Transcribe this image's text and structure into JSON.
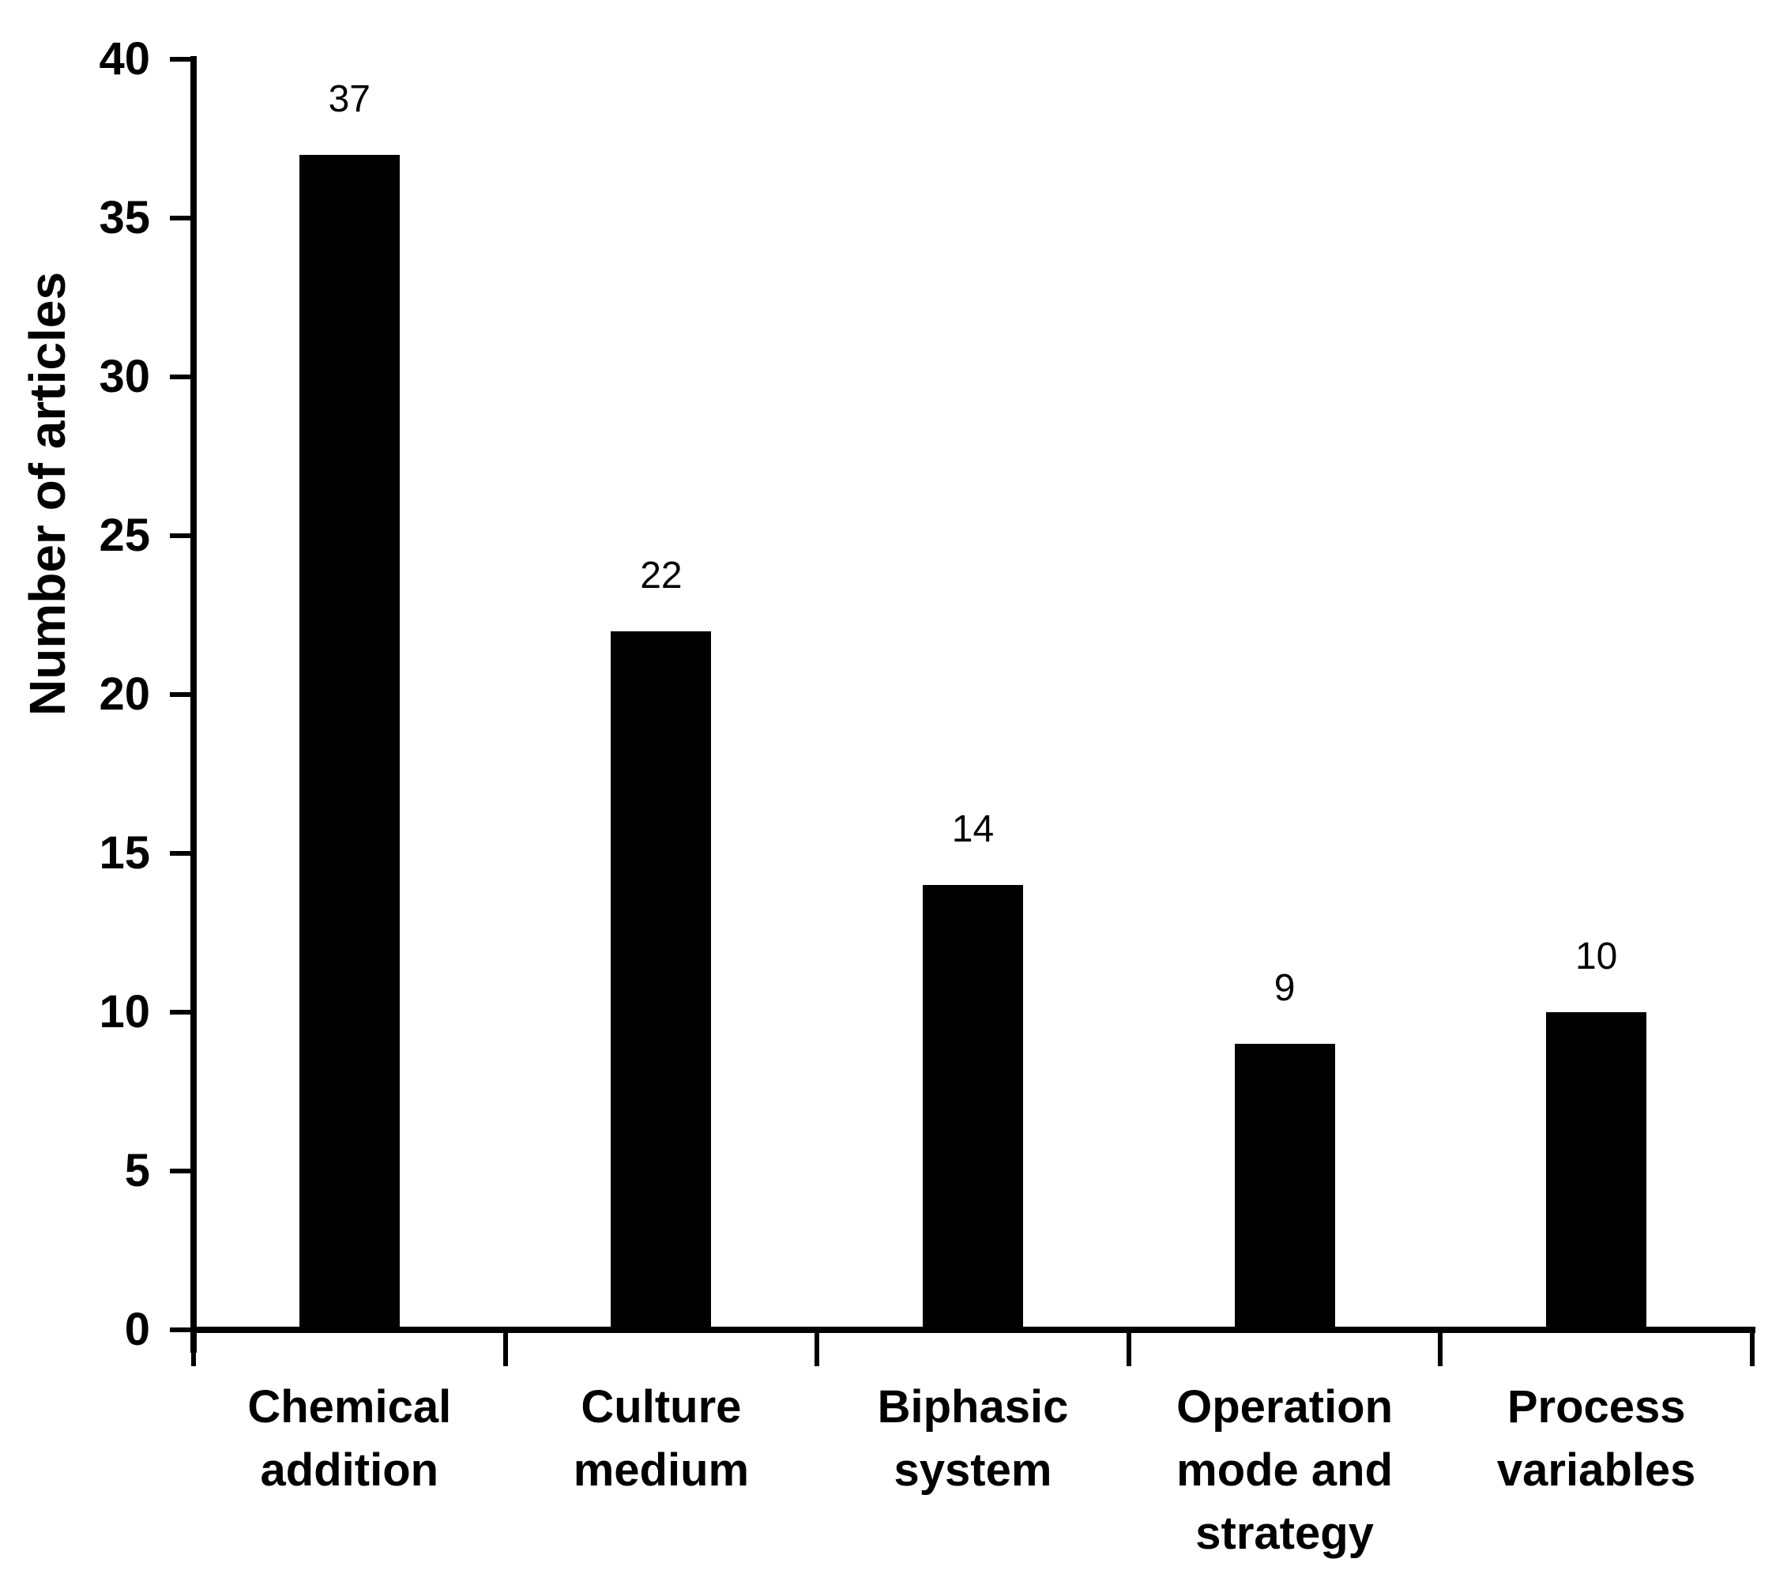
{
  "chart_data": {
    "type": "bar",
    "categories": [
      "Chemical addition",
      "Culture medium",
      "Biphasic system",
      "Operation mode and strategy",
      "Process variables"
    ],
    "values": [
      37,
      22,
      14,
      9,
      10
    ],
    "title": "",
    "xlabel": "",
    "ylabel": "Number of articles",
    "ylim": [
      0,
      40
    ],
    "yticks": [
      0,
      5,
      10,
      15,
      20,
      25,
      30,
      35,
      40
    ],
    "grid": false,
    "legend": "none",
    "bar_color": "#000000",
    "axis_color": "#000000",
    "text_color": "#000000",
    "background_color": "#ffffff",
    "data_labels_shown": true
  }
}
